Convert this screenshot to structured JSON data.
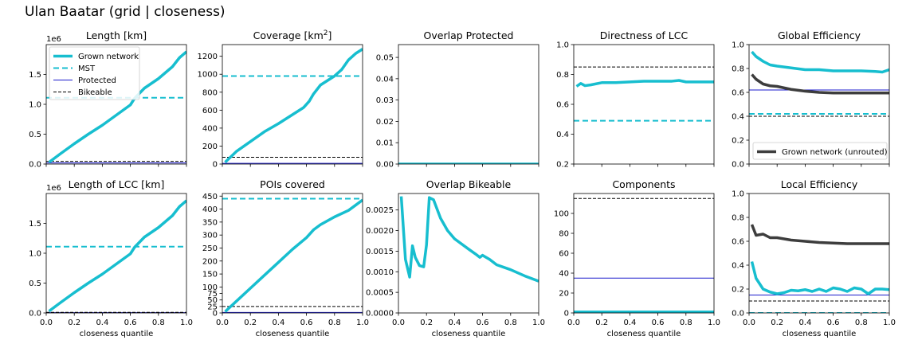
{
  "suptitle": "Ulan Baatar (grid | closeness)",
  "colors": {
    "grown": "#17becf",
    "mst": "#17becf",
    "protected": "#1a1acc",
    "bikeable": "#000000",
    "unrouted": "#3d3d3d"
  },
  "legend_main": {
    "items": [
      {
        "label": "Grown network",
        "style": "grown"
      },
      {
        "label": "MST",
        "style": "mst"
      },
      {
        "label": "Protected",
        "style": "protected"
      },
      {
        "label": "Bikeable",
        "style": "bikeable"
      }
    ],
    "placement": "upper-left",
    "panel": "length"
  },
  "legend_unrouted": {
    "items": [
      {
        "label": "Grown network (unrouted)",
        "style": "unrouted"
      }
    ],
    "placement": "lower-right",
    "panel": "global_eff"
  },
  "chart_data": [
    {
      "id": "length",
      "type": "line",
      "title": "Length [km]",
      "title_sup": "",
      "xlabel": "",
      "ylabel": "",
      "xlim": [
        0,
        1
      ],
      "ylim": [
        0,
        2000000
      ],
      "offset_label": "1e6",
      "yticks": [
        0,
        500000,
        1000000,
        1500000
      ],
      "ytick_labels": [
        "0.0",
        "0.5",
        "1.0",
        "1.5"
      ],
      "xticks": [
        0,
        0.2,
        0.4,
        0.6,
        0.8,
        1.0
      ],
      "xtick_labels": [],
      "series": [
        {
          "name": "Grown network",
          "style": "grown",
          "x": [
            0.02,
            0.1,
            0.2,
            0.3,
            0.4,
            0.5,
            0.6,
            0.63,
            0.7,
            0.8,
            0.9,
            0.95,
            1.0
          ],
          "y": [
            30000,
            170000,
            340000,
            500000,
            650000,
            820000,
            990000,
            1100000,
            1270000,
            1430000,
            1630000,
            1780000,
            1880000
          ]
        },
        {
          "name": "MST",
          "style": "mst",
          "y_const": 1110000
        },
        {
          "name": "Protected",
          "style": "protected",
          "y_const": 18000
        },
        {
          "name": "Bikeable",
          "style": "bikeable",
          "y_const": 45000
        }
      ]
    },
    {
      "id": "coverage",
      "type": "line",
      "title": "Coverage [km",
      "title_sup": "2",
      "title_end": "]",
      "xlabel": "",
      "ylabel": "",
      "xlim": [
        0,
        1
      ],
      "ylim": [
        0,
        1330
      ],
      "offset_label": "",
      "yticks": [
        0,
        200,
        400,
        600,
        800,
        1000,
        1200
      ],
      "ytick_labels": [
        "0",
        "200",
        "400",
        "600",
        "800",
        "1000",
        "1200"
      ],
      "xticks": [
        0,
        0.2,
        0.4,
        0.6,
        0.8,
        1.0
      ],
      "xtick_labels": [],
      "series": [
        {
          "name": "Grown network",
          "style": "grown",
          "x": [
            0.02,
            0.1,
            0.2,
            0.3,
            0.4,
            0.5,
            0.58,
            0.62,
            0.65,
            0.7,
            0.8,
            0.85,
            0.9,
            0.95,
            1.0
          ],
          "y": [
            20,
            140,
            250,
            360,
            450,
            550,
            630,
            700,
            780,
            880,
            980,
            1050,
            1160,
            1230,
            1280
          ]
        },
        {
          "name": "MST",
          "style": "mst",
          "y_const": 980
        },
        {
          "name": "Protected",
          "style": "protected",
          "y_const": 8
        },
        {
          "name": "Bikeable",
          "style": "bikeable",
          "y_const": 75
        }
      ]
    },
    {
      "id": "overlap_protected",
      "type": "line",
      "title": "Overlap Protected",
      "title_sup": "",
      "xlabel": "",
      "ylabel": "",
      "xlim": [
        0,
        1
      ],
      "ylim": [
        0,
        0.056
      ],
      "offset_label": "",
      "yticks": [
        0,
        0.01,
        0.02,
        0.03,
        0.04,
        0.05
      ],
      "ytick_labels": [
        "0.00",
        "0.01",
        "0.02",
        "0.03",
        "0.04",
        "0.05"
      ],
      "xticks": [
        0,
        0.2,
        0.4,
        0.6,
        0.8,
        1.0
      ],
      "xtick_labels": [],
      "series": [
        {
          "name": "Grown network",
          "style": "grown",
          "x": [
            0.0,
            1.0
          ],
          "y": [
            0,
            0
          ]
        }
      ]
    },
    {
      "id": "directness",
      "type": "line",
      "title": "Directness of LCC",
      "title_sup": "",
      "xlabel": "",
      "ylabel": "",
      "xlim": [
        0,
        1
      ],
      "ylim": [
        0.2,
        1.0
      ],
      "offset_label": "",
      "yticks": [
        0.2,
        0.4,
        0.6,
        0.8,
        1.0
      ],
      "ytick_labels": [
        "0.2",
        "0.4",
        "0.6",
        "0.8",
        "1.0"
      ],
      "xticks": [
        0,
        0.2,
        0.4,
        0.6,
        0.8,
        1.0
      ],
      "xtick_labels": [],
      "series": [
        {
          "name": "Grown network",
          "style": "grown",
          "x": [
            0.02,
            0.05,
            0.08,
            0.12,
            0.2,
            0.3,
            0.4,
            0.5,
            0.6,
            0.7,
            0.75,
            0.8,
            0.9,
            1.0
          ],
          "y": [
            0.72,
            0.74,
            0.725,
            0.73,
            0.745,
            0.745,
            0.75,
            0.755,
            0.755,
            0.755,
            0.76,
            0.75,
            0.75,
            0.75
          ]
        },
        {
          "name": "MST",
          "style": "mst",
          "y_const": 0.49
        },
        {
          "name": "Bikeable",
          "style": "bikeable",
          "y_const": 0.85
        }
      ]
    },
    {
      "id": "global_eff",
      "type": "line",
      "title": "Global Efficiency",
      "title_sup": "",
      "xlabel": "",
      "ylabel": "",
      "xlim": [
        0,
        1
      ],
      "ylim": [
        0,
        1.0
      ],
      "offset_label": "",
      "yticks": [
        0,
        0.2,
        0.4,
        0.6,
        0.8,
        1.0
      ],
      "ytick_labels": [
        "0.0",
        "0.2",
        "0.4",
        "0.6",
        "0.8",
        "1.0"
      ],
      "xticks": [
        0,
        0.2,
        0.4,
        0.6,
        0.8,
        1.0
      ],
      "xtick_labels": [],
      "series": [
        {
          "name": "Grown network",
          "style": "grown",
          "x": [
            0.02,
            0.05,
            0.1,
            0.15,
            0.2,
            0.3,
            0.4,
            0.5,
            0.6,
            0.7,
            0.8,
            0.9,
            0.95,
            1.0
          ],
          "y": [
            0.94,
            0.9,
            0.86,
            0.83,
            0.82,
            0.805,
            0.79,
            0.79,
            0.78,
            0.78,
            0.78,
            0.775,
            0.77,
            0.79
          ]
        },
        {
          "name": "Grown network (unrouted)",
          "style": "unrouted",
          "x": [
            0.02,
            0.05,
            0.1,
            0.15,
            0.2,
            0.3,
            0.4,
            0.5,
            0.6,
            0.7,
            0.8,
            0.9,
            1.0
          ],
          "y": [
            0.75,
            0.71,
            0.67,
            0.655,
            0.65,
            0.625,
            0.61,
            0.6,
            0.595,
            0.595,
            0.595,
            0.595,
            0.595
          ]
        },
        {
          "name": "MST",
          "style": "mst",
          "y_const": 0.42
        },
        {
          "name": "Protected",
          "style": "protected",
          "y_const": 0.62
        },
        {
          "name": "Bikeable",
          "style": "bikeable",
          "y_const": 0.4
        }
      ]
    },
    {
      "id": "length_lcc",
      "type": "line",
      "title": "Length of LCC [km]",
      "title_sup": "",
      "xlabel": "closeness quantile",
      "ylabel": "",
      "xlim": [
        0,
        1
      ],
      "ylim": [
        0,
        2000000
      ],
      "offset_label": "1e6",
      "yticks": [
        0,
        500000,
        1000000,
        1500000
      ],
      "ytick_labels": [
        "0.0",
        "0.5",
        "1.0",
        "1.5"
      ],
      "xticks": [
        0,
        0.2,
        0.4,
        0.6,
        0.8,
        1.0
      ],
      "xtick_labels": [
        "0.0",
        "0.2",
        "0.4",
        "0.6",
        "0.8",
        "1.0"
      ],
      "series": [
        {
          "name": "Grown network",
          "style": "grown",
          "x": [
            0.02,
            0.1,
            0.2,
            0.3,
            0.4,
            0.5,
            0.6,
            0.63,
            0.7,
            0.8,
            0.9,
            0.95,
            1.0
          ],
          "y": [
            30000,
            170000,
            340000,
            500000,
            650000,
            820000,
            990000,
            1100000,
            1270000,
            1430000,
            1630000,
            1780000,
            1880000
          ]
        },
        {
          "name": "MST",
          "style": "mst",
          "y_const": 1110000
        },
        {
          "name": "Protected",
          "style": "protected",
          "y_const": 5000
        },
        {
          "name": "Bikeable",
          "style": "bikeable",
          "y_const": 10000
        }
      ]
    },
    {
      "id": "pois",
      "type": "line",
      "title": "POIs covered",
      "title_sup": "",
      "xlabel": "closeness quantile",
      "ylabel": "",
      "xlim": [
        0,
        1
      ],
      "ylim": [
        0,
        460
      ],
      "offset_label": "",
      "yticks": [
        0,
        25,
        50,
        75,
        100,
        150,
        200,
        250,
        300,
        350,
        400,
        450
      ],
      "ytick_labels": [
        "0",
        "25",
        "50",
        "75",
        "100",
        "150",
        "200",
        "250",
        "300",
        "350",
        "400",
        "450"
      ],
      "xticks": [
        0,
        0.2,
        0.4,
        0.6,
        0.8,
        1.0
      ],
      "xtick_labels": [
        "0.0",
        "0.2",
        "0.4",
        "0.6",
        "0.8",
        "1.0"
      ],
      "series": [
        {
          "name": "Grown network",
          "style": "grown",
          "x": [
            0.02,
            0.1,
            0.2,
            0.3,
            0.4,
            0.5,
            0.6,
            0.65,
            0.7,
            0.8,
            0.9,
            0.95,
            1.0
          ],
          "y": [
            5,
            45,
            95,
            145,
            195,
            245,
            290,
            320,
            340,
            370,
            395,
            415,
            435
          ]
        },
        {
          "name": "MST",
          "style": "mst",
          "y_const": 440
        },
        {
          "name": "Protected",
          "style": "protected",
          "y_const": 2
        },
        {
          "name": "Bikeable",
          "style": "bikeable",
          "y_const": 25
        }
      ]
    },
    {
      "id": "overlap_bikeable",
      "type": "line",
      "title": "Overlap Bikeable",
      "title_sup": "",
      "xlabel": "closeness quantile",
      "ylabel": "",
      "xlim": [
        0,
        1
      ],
      "ylim": [
        0,
        0.0029
      ],
      "offset_label": "",
      "yticks": [
        0,
        0.0005,
        0.001,
        0.0015,
        0.002,
        0.0025
      ],
      "ytick_labels": [
        "0.0000",
        "0.0005",
        "0.0010",
        "0.0015",
        "0.0020",
        "0.0025"
      ],
      "xticks": [
        0,
        0.2,
        0.4,
        0.6,
        0.8,
        1.0
      ],
      "xtick_labels": [
        "0.0",
        "0.2",
        "0.4",
        "0.6",
        "0.8",
        "1.0"
      ],
      "series": [
        {
          "name": "Grown network",
          "style": "grown",
          "x": [
            0.02,
            0.05,
            0.08,
            0.1,
            0.12,
            0.15,
            0.18,
            0.2,
            0.22,
            0.25,
            0.3,
            0.35,
            0.4,
            0.5,
            0.55,
            0.58,
            0.6,
            0.65,
            0.7,
            0.8,
            0.9,
            1.0
          ],
          "y": [
            0.00283,
            0.0013,
            0.00087,
            0.00163,
            0.00135,
            0.00115,
            0.00112,
            0.00165,
            0.0028,
            0.00275,
            0.0023,
            0.002,
            0.0018,
            0.00155,
            0.00143,
            0.00135,
            0.0014,
            0.0013,
            0.00117,
            0.00105,
            0.0009,
            0.00077
          ]
        }
      ]
    },
    {
      "id": "components",
      "type": "line",
      "title": "Components",
      "title_sup": "",
      "xlabel": "closeness quantile",
      "ylabel": "",
      "xlim": [
        0,
        1
      ],
      "ylim": [
        0,
        120
      ],
      "offset_label": "",
      "yticks": [
        0,
        20,
        40,
        60,
        80,
        100
      ],
      "ytick_labels": [
        "0",
        "20",
        "40",
        "60",
        "80",
        "100"
      ],
      "xticks": [
        0,
        0.2,
        0.4,
        0.6,
        0.8,
        1.0
      ],
      "xtick_labels": [
        "0.0",
        "0.2",
        "0.4",
        "0.6",
        "0.8",
        "1.0"
      ],
      "series": [
        {
          "name": "Grown network",
          "style": "grown",
          "x": [
            0.0,
            1.0
          ],
          "y": [
            1,
            1
          ]
        },
        {
          "name": "MST",
          "style": "mst",
          "y_const": 1
        },
        {
          "name": "Protected",
          "style": "protected",
          "y_const": 35
        },
        {
          "name": "Bikeable",
          "style": "bikeable",
          "y_const": 115
        }
      ]
    },
    {
      "id": "local_eff",
      "type": "line",
      "title": "Local Efficiency",
      "title_sup": "",
      "xlabel": "closeness quantile",
      "ylabel": "",
      "xlim": [
        0,
        1
      ],
      "ylim": [
        0,
        1.0
      ],
      "offset_label": "",
      "yticks": [
        0,
        0.2,
        0.4,
        0.6,
        0.8,
        1.0
      ],
      "ytick_labels": [
        "0.0",
        "0.2",
        "0.4",
        "0.6",
        "0.8",
        "1.0"
      ],
      "xticks": [
        0,
        0.2,
        0.4,
        0.6,
        0.8,
        1.0
      ],
      "xtick_labels": [
        "0.0",
        "0.2",
        "0.4",
        "0.6",
        "0.8",
        "1.0"
      ],
      "series": [
        {
          "name": "Grown network",
          "style": "grown",
          "x": [
            0.02,
            0.05,
            0.1,
            0.15,
            0.2,
            0.25,
            0.3,
            0.35,
            0.4,
            0.45,
            0.5,
            0.55,
            0.6,
            0.65,
            0.7,
            0.75,
            0.8,
            0.85,
            0.9,
            0.95,
            1.0
          ],
          "y": [
            0.43,
            0.29,
            0.2,
            0.175,
            0.16,
            0.17,
            0.19,
            0.185,
            0.195,
            0.18,
            0.2,
            0.18,
            0.21,
            0.2,
            0.18,
            0.21,
            0.2,
            0.16,
            0.2,
            0.2,
            0.195
          ]
        },
        {
          "name": "Grown network (unrouted)",
          "style": "unrouted",
          "x": [
            0.02,
            0.05,
            0.1,
            0.15,
            0.2,
            0.3,
            0.4,
            0.5,
            0.6,
            0.7,
            0.8,
            0.9,
            1.0
          ],
          "y": [
            0.74,
            0.65,
            0.66,
            0.63,
            0.63,
            0.61,
            0.6,
            0.59,
            0.585,
            0.58,
            0.58,
            0.58,
            0.58
          ]
        },
        {
          "name": "MST",
          "style": "mst",
          "y_const": 0.0
        },
        {
          "name": "Protected",
          "style": "protected",
          "y_const": 0.15
        },
        {
          "name": "Bikeable",
          "style": "bikeable",
          "y_const": 0.1
        }
      ]
    }
  ]
}
